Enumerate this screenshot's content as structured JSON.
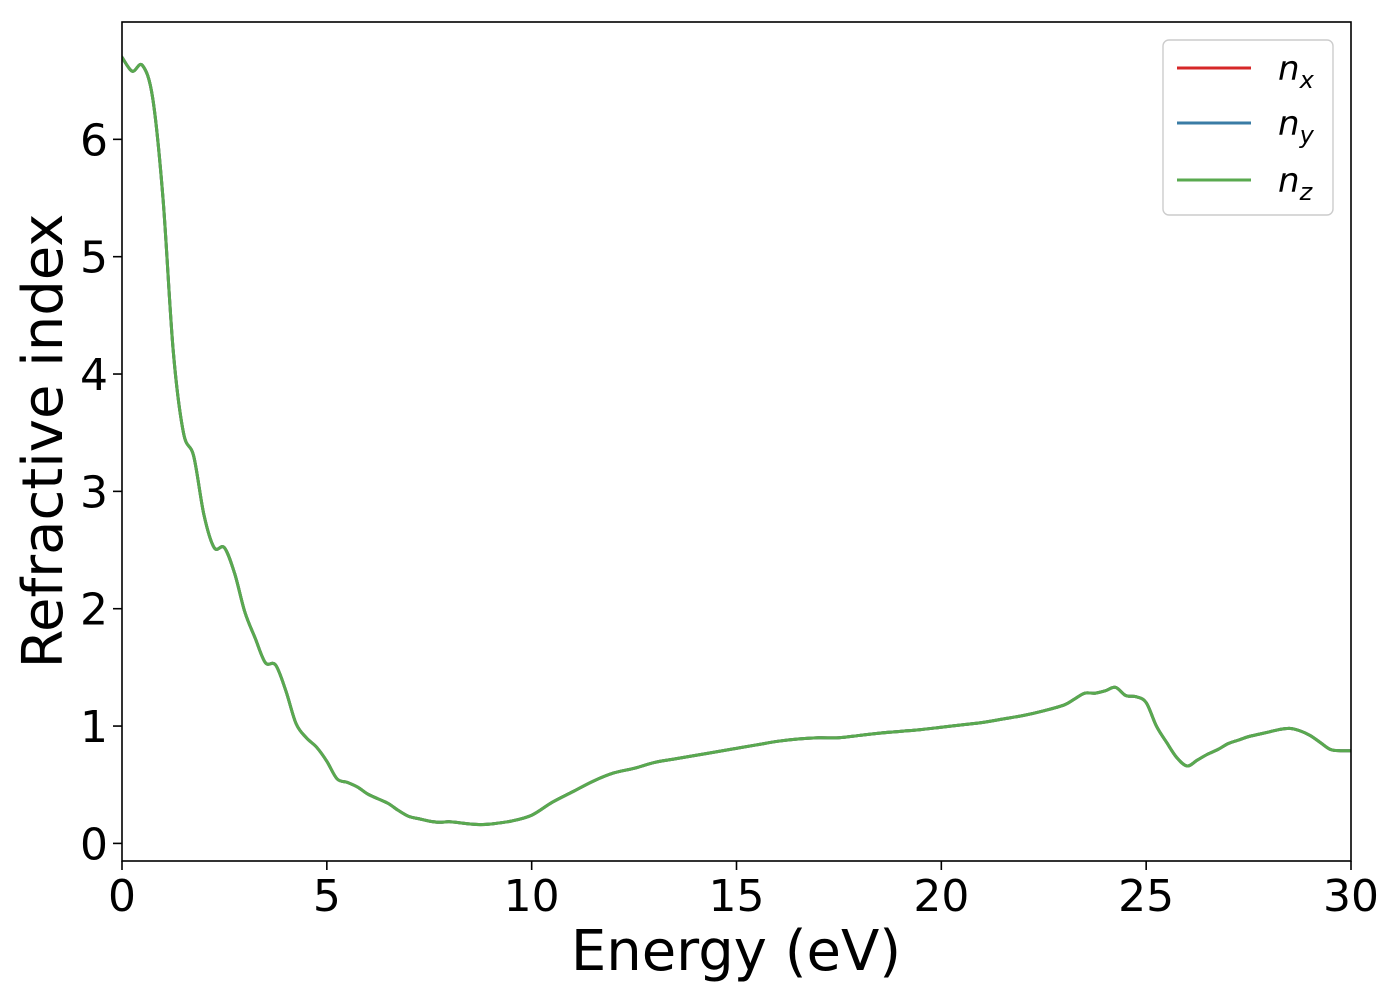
{
  "chart_data": {
    "type": "line",
    "title": "",
    "xlabel": "Energy (eV)",
    "ylabel": "Refractive index",
    "xlim": [
      0,
      30
    ],
    "ylim": [
      -0.15,
      7.0
    ],
    "xticks": [
      0,
      5,
      10,
      15,
      20,
      25,
      30
    ],
    "yticks": [
      0,
      1,
      2,
      3,
      4,
      5,
      6
    ],
    "grid": false,
    "legend_placement": "top-right",
    "x": [
      0,
      0.25,
      0.5,
      0.75,
      1.0,
      1.25,
      1.5,
      1.75,
      2.0,
      2.25,
      2.5,
      2.75,
      3.0,
      3.25,
      3.5,
      3.75,
      4.0,
      4.25,
      4.5,
      4.75,
      5.0,
      5.25,
      5.5,
      5.75,
      6.0,
      6.25,
      6.5,
      6.75,
      7.0,
      7.25,
      7.5,
      7.75,
      8.0,
      8.25,
      8.5,
      8.75,
      9.0,
      9.5,
      10.0,
      10.5,
      11.0,
      11.5,
      12.0,
      12.5,
      13.0,
      13.5,
      14.0,
      14.5,
      15.0,
      15.5,
      16.0,
      16.5,
      17.0,
      17.5,
      18.0,
      18.5,
      19.0,
      19.5,
      20.0,
      20.5,
      21.0,
      21.5,
      22.0,
      22.5,
      23.0,
      23.25,
      23.5,
      23.75,
      24.0,
      24.25,
      24.5,
      24.75,
      25.0,
      25.25,
      25.5,
      25.75,
      26.0,
      26.25,
      26.5,
      26.75,
      27.0,
      27.25,
      27.5,
      27.75,
      28.0,
      28.25,
      28.5,
      28.75,
      29.0,
      29.25,
      29.5,
      29.75,
      30.0
    ],
    "series": [
      {
        "name": "n_x",
        "label_base": "n",
        "label_sub": "x",
        "color": "#d62728",
        "values": [
          6.7,
          6.58,
          6.63,
          6.35,
          5.5,
          4.2,
          3.5,
          3.3,
          2.8,
          2.52,
          2.52,
          2.3,
          1.97,
          1.75,
          1.54,
          1.52,
          1.3,
          1.02,
          0.9,
          0.82,
          0.7,
          0.55,
          0.52,
          0.48,
          0.42,
          0.38,
          0.34,
          0.28,
          0.23,
          0.21,
          0.19,
          0.18,
          0.185,
          0.175,
          0.165,
          0.16,
          0.165,
          0.19,
          0.24,
          0.35,
          0.44,
          0.53,
          0.6,
          0.64,
          0.69,
          0.72,
          0.75,
          0.78,
          0.81,
          0.84,
          0.87,
          0.89,
          0.9,
          0.9,
          0.92,
          0.94,
          0.955,
          0.97,
          0.99,
          1.01,
          1.03,
          1.06,
          1.09,
          1.13,
          1.18,
          1.23,
          1.28,
          1.28,
          1.3,
          1.33,
          1.26,
          1.25,
          1.2,
          1.0,
          0.86,
          0.73,
          0.66,
          0.71,
          0.76,
          0.8,
          0.85,
          0.88,
          0.91,
          0.93,
          0.95,
          0.97,
          0.98,
          0.96,
          0.92,
          0.86,
          0.8,
          0.79,
          0.79
        ]
      },
      {
        "name": "n_y",
        "label_base": "n",
        "label_sub": "y",
        "color": "#3a7ca5",
        "values": [
          6.7,
          6.58,
          6.63,
          6.35,
          5.5,
          4.2,
          3.5,
          3.3,
          2.8,
          2.52,
          2.52,
          2.3,
          1.97,
          1.75,
          1.54,
          1.52,
          1.3,
          1.02,
          0.9,
          0.82,
          0.7,
          0.55,
          0.52,
          0.48,
          0.42,
          0.38,
          0.34,
          0.28,
          0.23,
          0.21,
          0.19,
          0.18,
          0.185,
          0.175,
          0.165,
          0.16,
          0.165,
          0.19,
          0.24,
          0.35,
          0.44,
          0.53,
          0.6,
          0.64,
          0.69,
          0.72,
          0.75,
          0.78,
          0.81,
          0.84,
          0.87,
          0.89,
          0.9,
          0.9,
          0.92,
          0.94,
          0.955,
          0.97,
          0.99,
          1.01,
          1.03,
          1.06,
          1.09,
          1.13,
          1.18,
          1.23,
          1.28,
          1.28,
          1.3,
          1.33,
          1.26,
          1.25,
          1.2,
          1.0,
          0.86,
          0.73,
          0.66,
          0.71,
          0.76,
          0.8,
          0.85,
          0.88,
          0.91,
          0.93,
          0.95,
          0.97,
          0.98,
          0.96,
          0.92,
          0.86,
          0.8,
          0.79,
          0.79
        ]
      },
      {
        "name": "n_z",
        "label_base": "n",
        "label_sub": "z",
        "color": "#59a94f",
        "values": [
          6.7,
          6.58,
          6.63,
          6.35,
          5.5,
          4.2,
          3.5,
          3.3,
          2.8,
          2.52,
          2.52,
          2.3,
          1.97,
          1.75,
          1.54,
          1.52,
          1.3,
          1.02,
          0.9,
          0.82,
          0.7,
          0.55,
          0.52,
          0.48,
          0.42,
          0.38,
          0.34,
          0.28,
          0.23,
          0.21,
          0.19,
          0.18,
          0.185,
          0.175,
          0.165,
          0.16,
          0.165,
          0.19,
          0.24,
          0.35,
          0.44,
          0.53,
          0.6,
          0.64,
          0.69,
          0.72,
          0.75,
          0.78,
          0.81,
          0.84,
          0.87,
          0.89,
          0.9,
          0.9,
          0.92,
          0.94,
          0.955,
          0.97,
          0.99,
          1.01,
          1.03,
          1.06,
          1.09,
          1.13,
          1.18,
          1.23,
          1.28,
          1.28,
          1.3,
          1.33,
          1.26,
          1.25,
          1.2,
          1.0,
          0.86,
          0.73,
          0.66,
          0.71,
          0.76,
          0.8,
          0.85,
          0.88,
          0.91,
          0.93,
          0.95,
          0.97,
          0.98,
          0.96,
          0.92,
          0.86,
          0.8,
          0.79,
          0.79
        ]
      }
    ]
  }
}
